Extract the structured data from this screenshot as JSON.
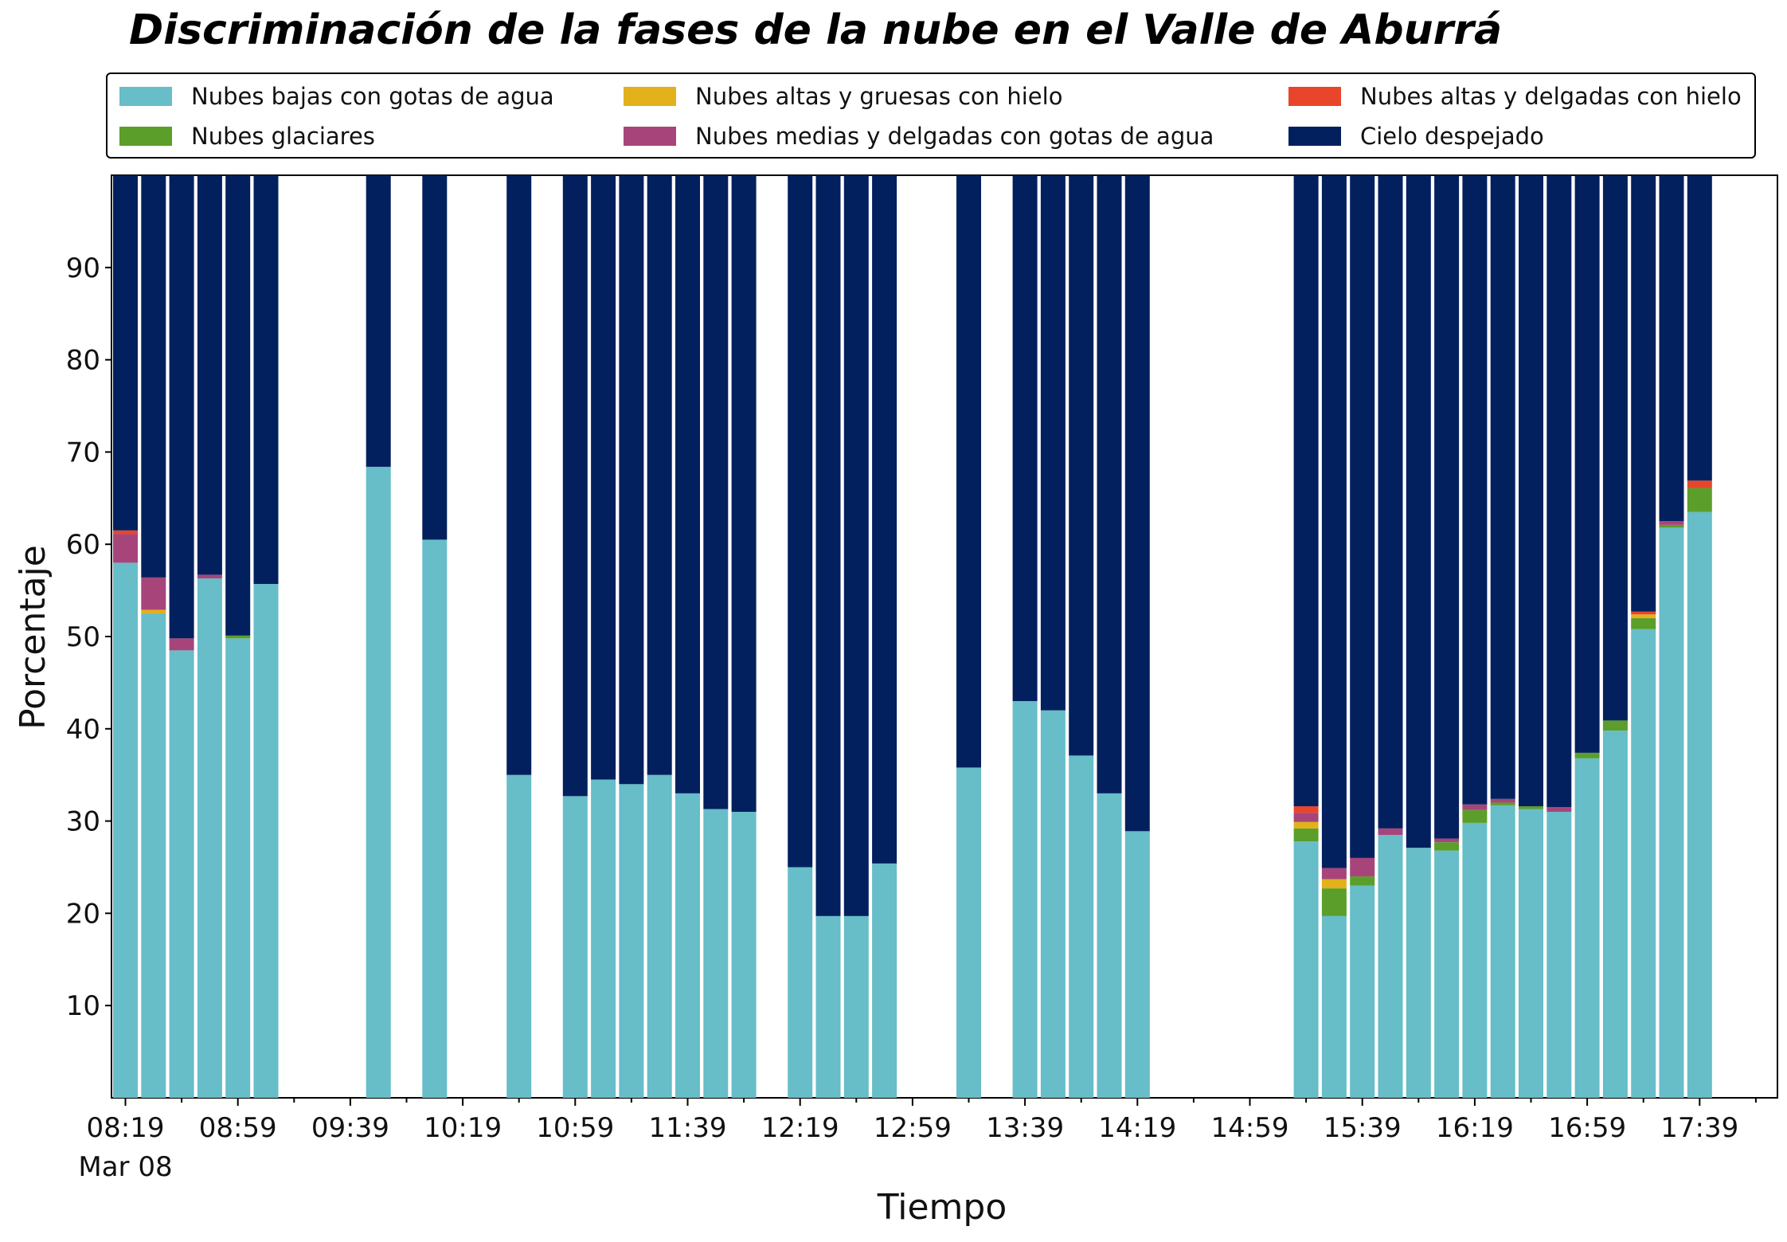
{
  "chart_data": {
    "type": "bar",
    "stacked": true,
    "title": "Discriminación de la fases de la nube en el Valle de Aburrá",
    "xlabel": "Tiempo",
    "ylabel": "Porcentaje",
    "ylim": [
      0,
      100
    ],
    "yticks": [
      10,
      20,
      30,
      40,
      50,
      60,
      70,
      80,
      90
    ],
    "x_tick_labels": [
      "08:19",
      "08:59",
      "09:39",
      "10:19",
      "10:59",
      "11:39",
      "12:19",
      "12:59",
      "13:39",
      "14:19",
      "14:59",
      "15:39",
      "16:19",
      "16:59",
      "17:39"
    ],
    "x_date_label": "Mar 08",
    "grid": false,
    "legend_position": "top",
    "times": [
      "08:19",
      "08:29",
      "08:39",
      "08:49",
      "08:59",
      "09:09",
      "09:49",
      "10:09",
      "10:39",
      "10:59",
      "11:09",
      "11:19",
      "11:29",
      "11:39",
      "11:49",
      "11:59",
      "12:19",
      "12:29",
      "12:39",
      "12:49",
      "13:19",
      "13:39",
      "13:49",
      "13:59",
      "14:09",
      "14:19",
      "15:19",
      "15:29",
      "15:39",
      "15:49",
      "15:59",
      "16:09",
      "16:19",
      "16:29",
      "16:39",
      "16:49",
      "16:59",
      "17:09",
      "17:19",
      "17:29",
      "17:39"
    ],
    "series": [
      {
        "name": "Nubes bajas con gotas de agua",
        "color": "#67bdc8",
        "values": [
          58,
          52.5,
          48.5,
          56.3,
          49.8,
          55.7,
          68.4,
          60.5,
          35,
          32.7,
          34.5,
          34,
          35,
          33,
          31.3,
          31,
          25,
          19.7,
          19.7,
          25.4,
          35.8,
          43,
          42,
          37.1,
          33,
          28.9,
          27.8,
          19.7,
          23,
          28.5,
          27.1,
          26.8,
          29.8,
          31.7,
          31.3,
          31,
          36.8,
          39.8,
          50.8,
          61.8,
          63.5
        ]
      },
      {
        "name": "Nubes glaciares",
        "color": "#5b9e2a",
        "values": [
          0,
          0,
          0,
          0,
          0.3,
          0,
          0,
          0,
          0,
          0,
          0,
          0,
          0,
          0,
          0,
          0,
          0,
          0,
          0,
          0,
          0,
          0,
          0,
          0,
          0,
          0,
          1.4,
          3,
          1,
          0,
          0,
          0.9,
          1.4,
          0.3,
          0.3,
          0,
          0.6,
          1.1,
          1.2,
          0.3,
          2.6
        ]
      },
      {
        "name": "Nubes altas y gruesas con hielo",
        "color": "#e2b11b",
        "values": [
          0,
          0.4,
          0,
          0,
          0,
          0,
          0,
          0,
          0,
          0,
          0,
          0,
          0,
          0,
          0,
          0,
          0,
          0,
          0,
          0,
          0,
          0,
          0,
          0,
          0,
          0,
          0.7,
          1,
          0,
          0,
          0,
          0,
          0,
          0,
          0,
          0,
          0,
          0,
          0.4,
          0,
          0
        ]
      },
      {
        "name": "Nubes medias y delgadas con gotas de agua",
        "color": "#a7457b",
        "values": [
          3.1,
          3.5,
          1.3,
          0.4,
          0,
          0,
          0,
          0,
          0,
          0,
          0,
          0,
          0,
          0,
          0,
          0,
          0,
          0,
          0,
          0,
          0,
          0,
          0,
          0,
          0,
          0,
          1,
          1.2,
          2,
          0.7,
          0,
          0.4,
          0.6,
          0.4,
          0,
          0.5,
          0,
          0,
          0,
          0.4,
          0
        ]
      },
      {
        "name": "Nubes altas y delgadas con hielo",
        "color": "#e8452a",
        "values": [
          0.4,
          0,
          0,
          0,
          0,
          0,
          0,
          0,
          0,
          0,
          0,
          0,
          0,
          0,
          0,
          0,
          0,
          0,
          0,
          0,
          0,
          0,
          0,
          0,
          0,
          0,
          0.7,
          0,
          0,
          0,
          0,
          0,
          0,
          0,
          0,
          0,
          0,
          0,
          0.3,
          0,
          0.8
        ]
      },
      {
        "name": "Cielo despejado",
        "color": "#03205e",
        "values": [
          38.5,
          43.6,
          50.2,
          43.3,
          49.9,
          44.3,
          31.6,
          39.5,
          65,
          67.3,
          65.5,
          66,
          65,
          67,
          68.7,
          69,
          75,
          80.3,
          80.3,
          74.6,
          64.2,
          57,
          58,
          62.9,
          67,
          71.1,
          68.4,
          75.1,
          74,
          70.8,
          72.9,
          71.9,
          68.2,
          67.6,
          68.4,
          68.5,
          62.6,
          59.1,
          47.3,
          37.5,
          33.1
        ]
      }
    ]
  }
}
